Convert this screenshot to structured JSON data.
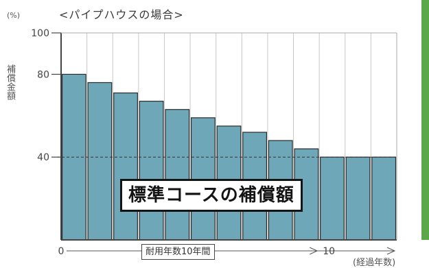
{
  "chart_data": {
    "type": "bar",
    "title": "<パイプハウスの場合>",
    "unit_label": "(%)",
    "ylabel": "補償金額",
    "xlabel": "(経過年数)",
    "overlay_label": "標準コースの補償額",
    "span_label": "耐用年数10年間",
    "ylim": [
      0,
      100
    ],
    "y_ticks": [
      "100",
      "80",
      "40"
    ],
    "y_tick_values": [
      100,
      80,
      40
    ],
    "x_ticks": [
      "0",
      "10"
    ],
    "x_tick_values": [
      0,
      10
    ],
    "reference_line": 40,
    "grid": true,
    "values": [
      80,
      76,
      71,
      67,
      63,
      59,
      55,
      52,
      48,
      44,
      40,
      40,
      40
    ],
    "colors": {
      "bar": "#6ea8b8",
      "bar_edge": "#2a2a2a",
      "axis": "#444444",
      "accent": "#5aa84a"
    }
  }
}
